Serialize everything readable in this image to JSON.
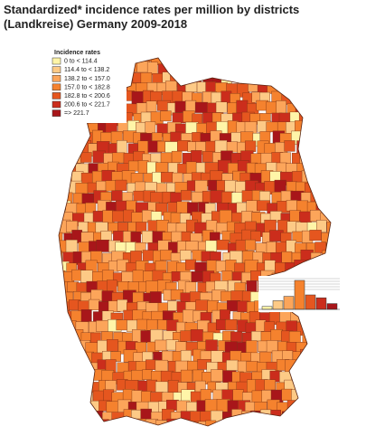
{
  "title_lines": [
    "Standardized* incidence rates per million by districts",
    "(Landkreise) Germany 2009-2018"
  ],
  "legend": {
    "title": "Incidence rates",
    "classes": [
      {
        "label": "0 to < 114.4",
        "color": "#fff5a8"
      },
      {
        "label": "114.4 to < 138.2",
        "color": "#fdca86"
      },
      {
        "label": "138.2 to < 157.0",
        "color": "#fca55a"
      },
      {
        "label": "157.0 to < 182.8",
        "color": "#f5822e"
      },
      {
        "label": "182.8 to < 200.6",
        "color": "#e5561f"
      },
      {
        "label": "200.6 to < 221.7",
        "color": "#cb2d1c"
      },
      {
        "label": "=> 221.7",
        "color": "#a8161a"
      }
    ]
  },
  "histogram": {
    "counts": [
      2,
      6,
      9,
      20,
      10,
      8,
      4
    ]
  }
}
